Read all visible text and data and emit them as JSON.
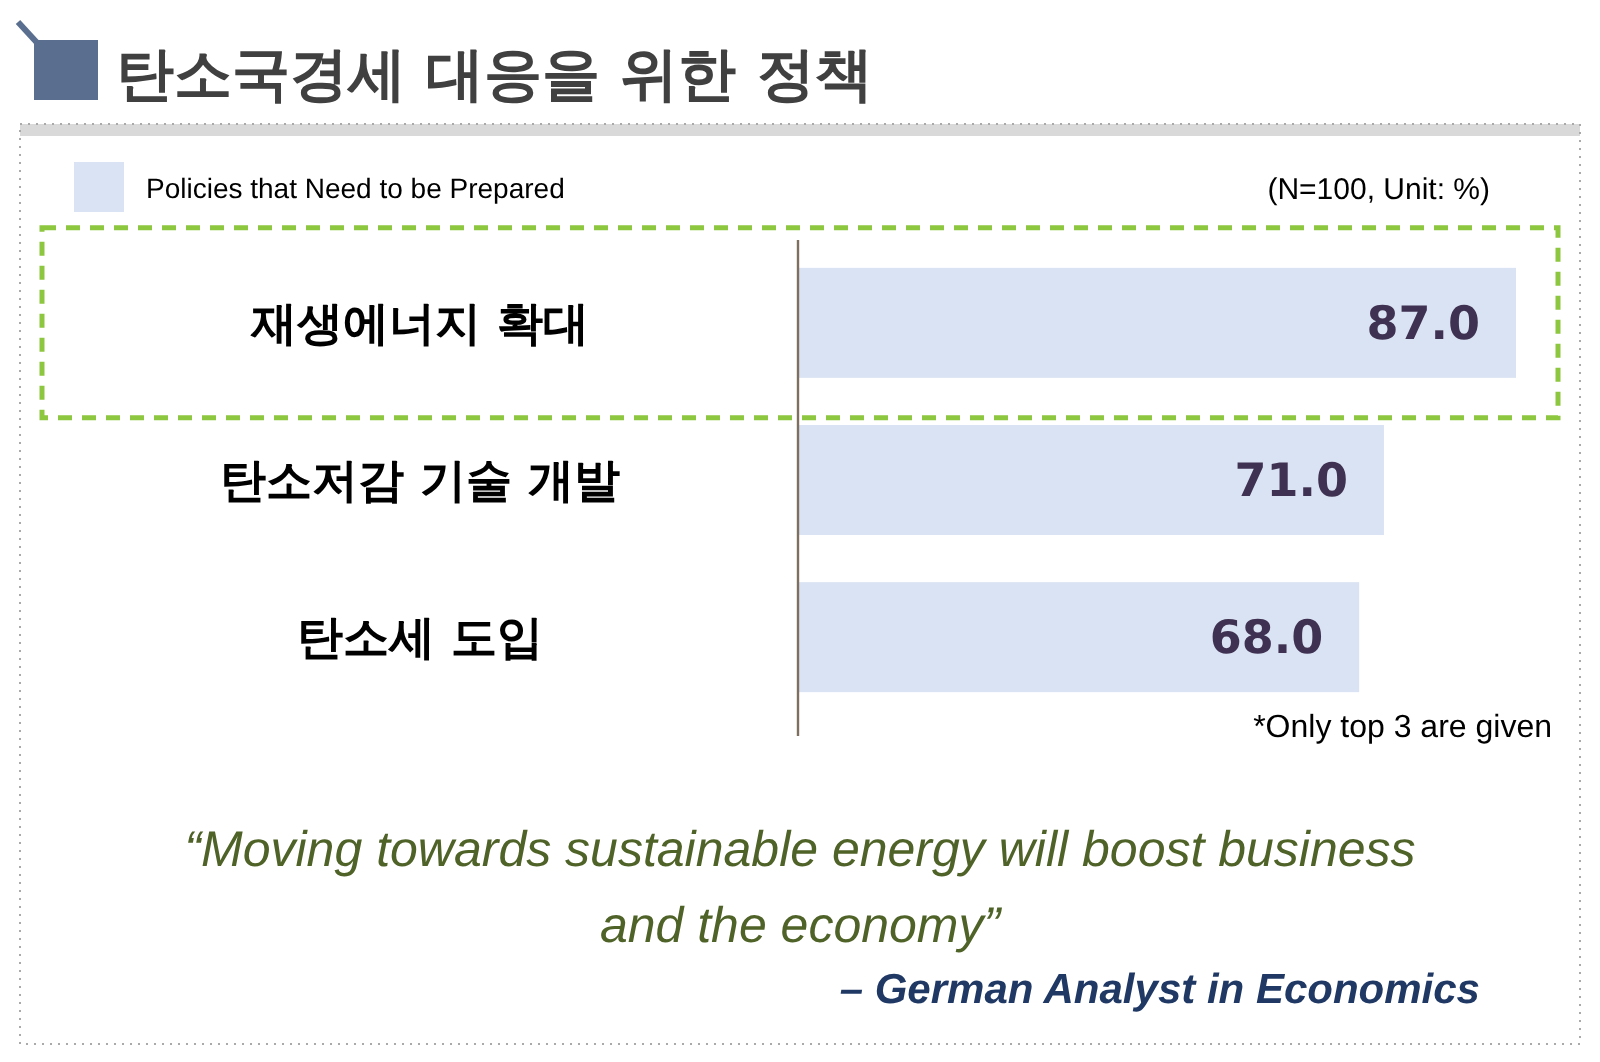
{
  "chart_data": {
    "type": "bar",
    "orientation": "horizontal",
    "title": "탄소국경세 대응을 위한 정책",
    "categories": [
      "재생에너지 확대",
      "탄소저감 기술 개발",
      "탄소세 도입"
    ],
    "series": [
      {
        "name": "Policies that Need to be Prepared",
        "color": "#dae3f3",
        "values": [
          87.0,
          71.0,
          68.0
        ],
        "value_labels": [
          "87.0",
          "71.0",
          "68.0"
        ]
      }
    ],
    "legend": "top left",
    "annotations": [
      "(N=100, Unit: %)",
      "*Only top 3 are given",
      "“Moving towards sustainable energy will boost business and the economy”",
      "– German Analyst in Economics"
    ]
  }
}
